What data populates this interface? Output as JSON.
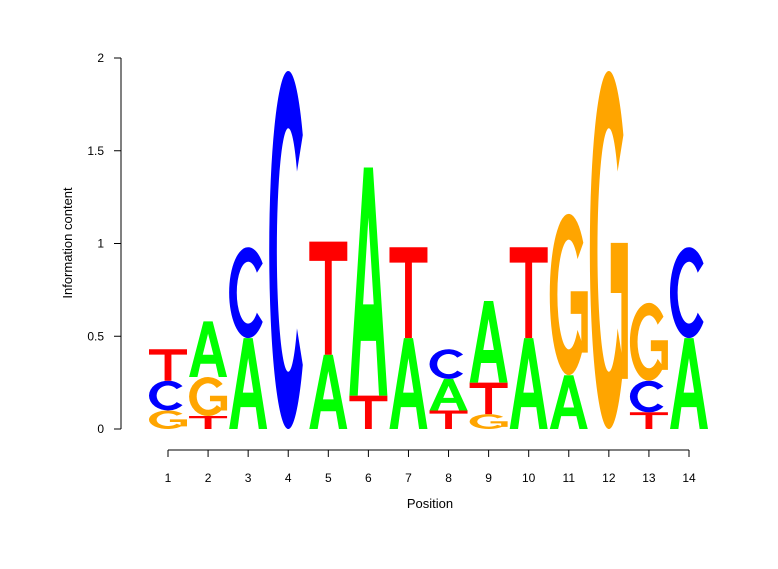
{
  "chart_data": {
    "type": "sequence-logo",
    "title": "",
    "xlabel": "Position",
    "ylabel": "Information content",
    "ylim": [
      0,
      2
    ],
    "yticks": [
      "0",
      "0.5",
      "1",
      "1.5",
      "2"
    ],
    "ytick_values": [
      0,
      0.5,
      1,
      1.5,
      2
    ],
    "categories": [
      "1",
      "2",
      "3",
      "4",
      "5",
      "6",
      "7",
      "8",
      "9",
      "10",
      "11",
      "12",
      "13",
      "14"
    ],
    "colors": {
      "A": "#00ff00",
      "C": "#0000ff",
      "G": "#ffa500",
      "T": "#ff0000"
    },
    "positions": [
      [
        [
          "G",
          0.1
        ],
        [
          "C",
          0.16
        ],
        [
          "T",
          0.17
        ]
      ],
      [
        [
          "T",
          0.07
        ],
        [
          "G",
          0.21
        ],
        [
          "A",
          0.3
        ]
      ],
      [
        [
          "A",
          0.49
        ],
        [
          "C",
          0.49
        ]
      ],
      [
        [
          "C",
          1.93
        ]
      ],
      [
        [
          "A",
          0.4
        ],
        [
          "T",
          0.61
        ]
      ],
      [
        [
          "T",
          0.18
        ],
        [
          "A",
          1.23
        ]
      ],
      [
        [
          "A",
          0.49
        ],
        [
          "T",
          0.49
        ]
      ],
      [
        [
          "T",
          0.1
        ],
        [
          "A",
          0.17
        ],
        [
          "C",
          0.16
        ]
      ],
      [
        [
          "G",
          0.08
        ],
        [
          "T",
          0.17
        ],
        [
          "A",
          0.44
        ]
      ],
      [
        [
          "A",
          0.49
        ],
        [
          "T",
          0.49
        ]
      ],
      [
        [
          "A",
          0.29
        ],
        [
          "G",
          0.87
        ]
      ],
      [
        [
          "G",
          1.93
        ]
      ],
      [
        [
          "T",
          0.09
        ],
        [
          "C",
          0.17
        ],
        [
          "G",
          0.42
        ]
      ],
      [
        [
          "A",
          0.49
        ],
        [
          "C",
          0.49
        ]
      ]
    ]
  }
}
